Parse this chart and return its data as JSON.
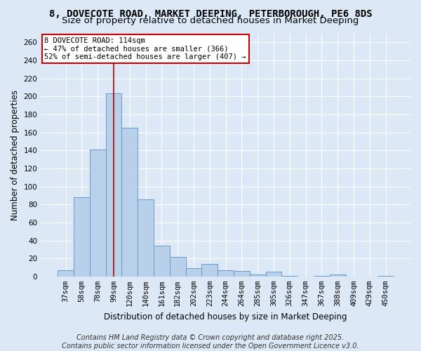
{
  "title_line1": "8, DOVECOTE ROAD, MARKET DEEPING, PETERBOROUGH, PE6 8DS",
  "title_line2": "Size of property relative to detached houses in Market Deeping",
  "xlabel": "Distribution of detached houses by size in Market Deeping",
  "ylabel": "Number of detached properties",
  "categories": [
    "37sqm",
    "58sqm",
    "78sqm",
    "99sqm",
    "120sqm",
    "140sqm",
    "161sqm",
    "182sqm",
    "202sqm",
    "223sqm",
    "244sqm",
    "264sqm",
    "285sqm",
    "305sqm",
    "326sqm",
    "347sqm",
    "367sqm",
    "388sqm",
    "409sqm",
    "429sqm",
    "450sqm"
  ],
  "values": [
    7,
    88,
    141,
    203,
    165,
    86,
    34,
    22,
    9,
    14,
    7,
    6,
    2,
    5,
    1,
    0,
    1,
    2,
    0,
    0,
    1
  ],
  "bar_color": "#b8d0ea",
  "bar_edge_color": "#6699cc",
  "vline_x": 3.0,
  "vline_color": "#aa0000",
  "ylim": [
    0,
    270
  ],
  "yticks": [
    0,
    20,
    40,
    60,
    80,
    100,
    120,
    140,
    160,
    180,
    200,
    220,
    240,
    260
  ],
  "annotation_text": "8 DOVECOTE ROAD: 114sqm\n← 47% of detached houses are smaller (366)\n52% of semi-detached houses are larger (407) →",
  "annotation_box_facecolor": "#ffffff",
  "annotation_box_edgecolor": "#cc0000",
  "bg_color": "#dce8f5",
  "plot_bg_color": "#dce8f5",
  "title1_fontsize": 10,
  "title2_fontsize": 9.5,
  "axis_label_fontsize": 8.5,
  "tick_fontsize": 7.5,
  "annot_fontsize": 7.5,
  "footer_fontsize": 7,
  "footer_line1": "Contains HM Land Registry data © Crown copyright and database right 2025.",
  "footer_line2": "Contains public sector information licensed under the Open Government Licence v3.0."
}
